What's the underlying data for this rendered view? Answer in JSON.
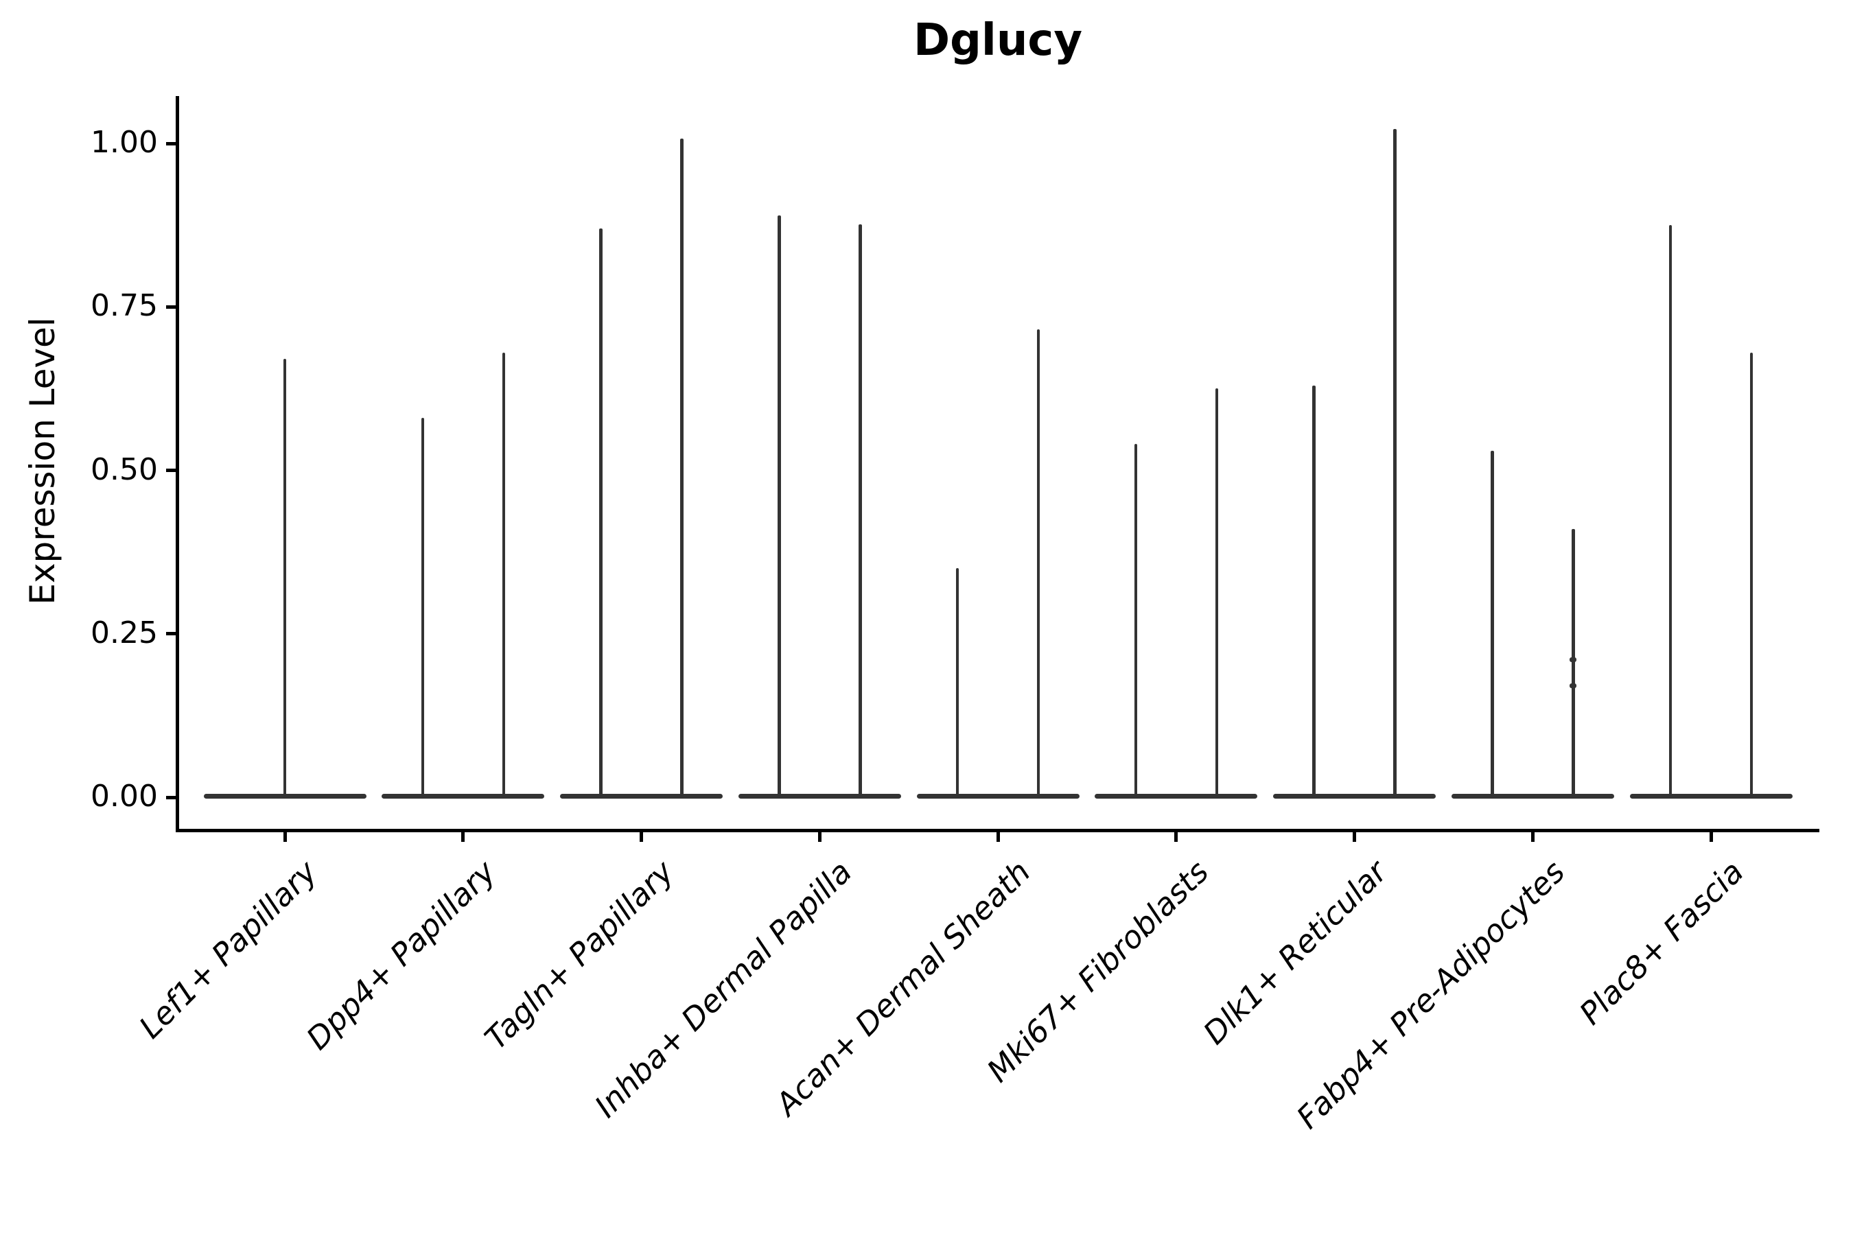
{
  "title": "Dglucy",
  "colors": {
    "violin": "#333333",
    "axis": "#000000",
    "text": "#000000",
    "background": "#ffffff"
  },
  "chart_data": {
    "type": "violin",
    "title": "Dglucy",
    "xlabel": "",
    "ylabel": "Expression Level",
    "ylim": [
      0,
      1.07
    ],
    "grid": false,
    "legend": "none",
    "yticks": [
      0.0,
      0.25,
      0.5,
      0.75,
      1.0
    ],
    "ytick_labels": [
      "0.00",
      "0.25",
      "0.50",
      "0.75",
      "1.00"
    ],
    "categories": [
      "Lef1+ Papillary",
      "Dpp4+ Papillary",
      "Tagln+ Papillary",
      "Inhba+ Dermal Papilla",
      "Acan+ Dermal Sheath",
      "Mki67+ Fibroblasts",
      "Dlk1+ Reticular",
      "Fabp4+ Pre-Adipocytes",
      "Plac8+ Fascia"
    ],
    "violin_description": "Each violin has nearly all density at expression 0 (wide flat base) with a thin spike rising to the max expressed value; categories 2-9 contain two side-by-side sub-violins, category 1 a single centered violin",
    "violins": [
      {
        "category": "Lef1+ Papillary",
        "spikes": [
          {
            "side": "center",
            "max": 0.67
          }
        ]
      },
      {
        "category": "Dpp4+ Papillary",
        "spikes": [
          {
            "side": "left",
            "max": 0.58
          },
          {
            "side": "right",
            "max": 0.68
          }
        ]
      },
      {
        "category": "Tagln+ Papillary",
        "spikes": [
          {
            "side": "left",
            "max": 0.87
          },
          {
            "side": "right",
            "max": 1.007
          }
        ]
      },
      {
        "category": "Inhba+ Dermal Papilla",
        "spikes": [
          {
            "side": "left",
            "max": 0.89
          },
          {
            "side": "right",
            "max": 0.876
          }
        ]
      },
      {
        "category": "Acan+ Dermal Sheath",
        "spikes": [
          {
            "side": "left",
            "max": 0.35
          },
          {
            "side": "right",
            "max": 0.716
          }
        ]
      },
      {
        "category": "Mki67+ Fibroblasts",
        "spikes": [
          {
            "side": "left",
            "max": 0.54
          },
          {
            "side": "right",
            "max": 0.625
          }
        ]
      },
      {
        "category": "Dlk1+ Reticular",
        "spikes": [
          {
            "side": "left",
            "max": 0.63
          },
          {
            "side": "right",
            "max": 1.022
          }
        ]
      },
      {
        "category": "Fabp4+ Pre-Adipocytes",
        "spikes": [
          {
            "side": "left",
            "max": 0.53
          },
          {
            "side": "right",
            "max": 0.41,
            "points": [
              0.21,
              0.17
            ]
          }
        ]
      },
      {
        "category": "Plac8+ Fascia",
        "spikes": [
          {
            "side": "left",
            "max": 0.875
          },
          {
            "side": "right",
            "max": 0.68
          }
        ]
      }
    ]
  }
}
